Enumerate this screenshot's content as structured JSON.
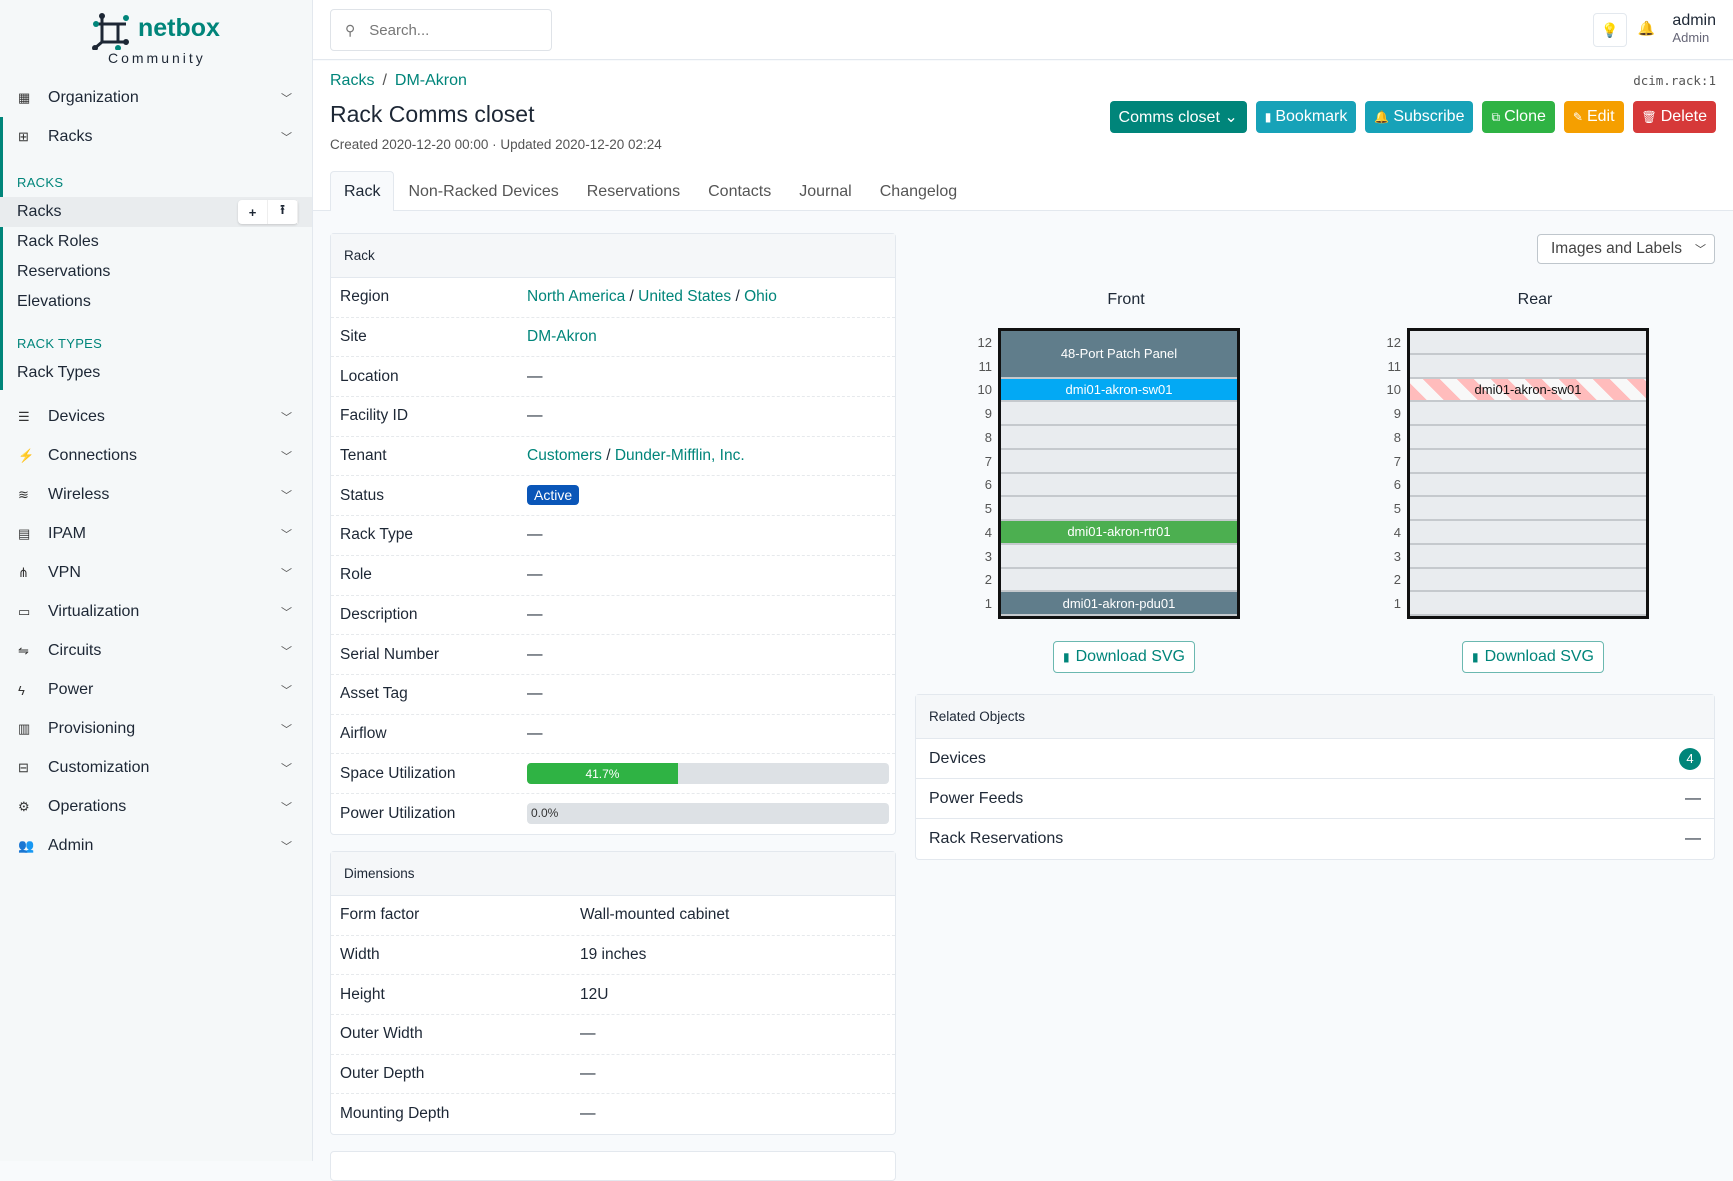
{
  "brand": {
    "name": "netbox",
    "edition": "Community",
    "color": "#00857a"
  },
  "sidebar": {
    "top": [
      {
        "label": "Organization",
        "icon": "building-icon"
      },
      {
        "label": "Racks",
        "icon": "rack-icon"
      }
    ],
    "racks_section": "RACKS",
    "racks_items": [
      {
        "label": "Racks",
        "active": true
      },
      {
        "label": "Rack Roles"
      },
      {
        "label": "Reservations"
      },
      {
        "label": "Elevations"
      }
    ],
    "rack_types_section": "RACK TYPES",
    "rack_types_items": [
      {
        "label": "Rack Types"
      }
    ],
    "add_label": "+",
    "import_label": "⭱",
    "groups": [
      {
        "label": "Devices",
        "icon": "server-icon",
        "g": "☰"
      },
      {
        "label": "Connections",
        "icon": "plug-icon",
        "g": "⚡"
      },
      {
        "label": "Wireless",
        "icon": "wifi-icon",
        "g": "≋"
      },
      {
        "label": "IPAM",
        "icon": "ip-icon",
        "g": "▤"
      },
      {
        "label": "VPN",
        "icon": "network-icon",
        "g": "⋔"
      },
      {
        "label": "Virtualization",
        "icon": "monitor-icon",
        "g": "▭"
      },
      {
        "label": "Circuits",
        "icon": "circuit-icon",
        "g": "⇋"
      },
      {
        "label": "Power",
        "icon": "bolt-icon",
        "g": "ϟ"
      },
      {
        "label": "Provisioning",
        "icon": "document-icon",
        "g": "▥"
      },
      {
        "label": "Customization",
        "icon": "toolbox-icon",
        "g": "⊟"
      },
      {
        "label": "Operations",
        "icon": "cogs-icon",
        "g": "⚙"
      },
      {
        "label": "Admin",
        "icon": "users-icon",
        "g": "👥"
      }
    ]
  },
  "topbar": {
    "search_placeholder": "Search...",
    "user": "admin",
    "role": "Admin"
  },
  "breadcrumb": [
    "Racks",
    "DM-Akron"
  ],
  "object_id": "dcim.rack:1",
  "title": "Rack Comms closet",
  "meta": "Created 2020-12-20 00:00 · Updated 2020-12-20 02:24",
  "actions": [
    {
      "label": "Comms closet ⌄",
      "color": "#00857a",
      "icon": ""
    },
    {
      "label": "Bookmark",
      "color": "#17a2b8",
      "icon": "▮"
    },
    {
      "label": "Subscribe",
      "color": "#17a2b8",
      "icon": "🔔"
    },
    {
      "label": "Clone",
      "color": "#2fb344",
      "icon": "⧉"
    },
    {
      "label": "Edit",
      "color": "#f59f00",
      "icon": "✎"
    },
    {
      "label": "Delete",
      "color": "#d63939",
      "icon": "🗑"
    }
  ],
  "tabs": [
    "Rack",
    "Non-Racked Devices",
    "Reservations",
    "Contacts",
    "Journal",
    "Changelog"
  ],
  "rack_card": {
    "title": "Rack",
    "rows": [
      {
        "k": "Region",
        "links": [
          "North America",
          "United States",
          "Ohio"
        ]
      },
      {
        "k": "Site",
        "links": [
          "DM-Akron"
        ]
      },
      {
        "k": "Location",
        "v": "—"
      },
      {
        "k": "Facility ID",
        "v": "—"
      },
      {
        "k": "Tenant",
        "links": [
          "Customers",
          "Dunder-Mifflin, Inc."
        ]
      },
      {
        "k": "Status",
        "badge": "Active"
      },
      {
        "k": "Rack Type",
        "v": "—"
      },
      {
        "k": "Role",
        "v": "—"
      },
      {
        "k": "Description",
        "v": "—"
      },
      {
        "k": "Serial Number",
        "v": "—"
      },
      {
        "k": "Asset Tag",
        "v": "—"
      },
      {
        "k": "Airflow",
        "v": "—"
      },
      {
        "k": "Space Utilization",
        "progress": 41.7,
        "label": "41.7%"
      },
      {
        "k": "Power Utilization",
        "progress": 0,
        "label": "0.0%"
      }
    ]
  },
  "dimensions_card": {
    "title": "Dimensions",
    "rows": [
      {
        "k": "Form factor",
        "v": "Wall-mounted cabinet"
      },
      {
        "k": "Width",
        "v": "19 inches"
      },
      {
        "k": "Height",
        "v": "12U"
      },
      {
        "k": "Outer Width",
        "v": "—"
      },
      {
        "k": "Outer Depth",
        "v": "—"
      },
      {
        "k": "Mounting Depth",
        "v": "—"
      }
    ]
  },
  "elevation": {
    "view_select": "Images and Labels",
    "units": 12,
    "front": {
      "label": "Front",
      "devices": [
        {
          "name": "48-Port Patch Panel",
          "top": 12,
          "height": 2,
          "color": "#607d8b"
        },
        {
          "name": "dmi01-akron-sw01",
          "top": 10,
          "height": 1,
          "color": "#03a9f4"
        },
        {
          "name": "dmi01-akron-rtr01",
          "top": 4,
          "height": 1,
          "color": "#4caf50"
        },
        {
          "name": "dmi01-akron-pdu01",
          "top": 1,
          "height": 1,
          "color": "#607d8b"
        }
      ]
    },
    "rear": {
      "label": "Rear",
      "devices": [
        {
          "name": "dmi01-akron-sw01",
          "top": 10,
          "height": 1,
          "striped": true
        }
      ]
    },
    "download_label": "Download SVG"
  },
  "related": {
    "title": "Related Objects",
    "rows": [
      {
        "label": "Devices",
        "count": "4"
      },
      {
        "label": "Power Feeds",
        "count": "—"
      },
      {
        "label": "Rack Reservations",
        "count": "—"
      }
    ]
  }
}
